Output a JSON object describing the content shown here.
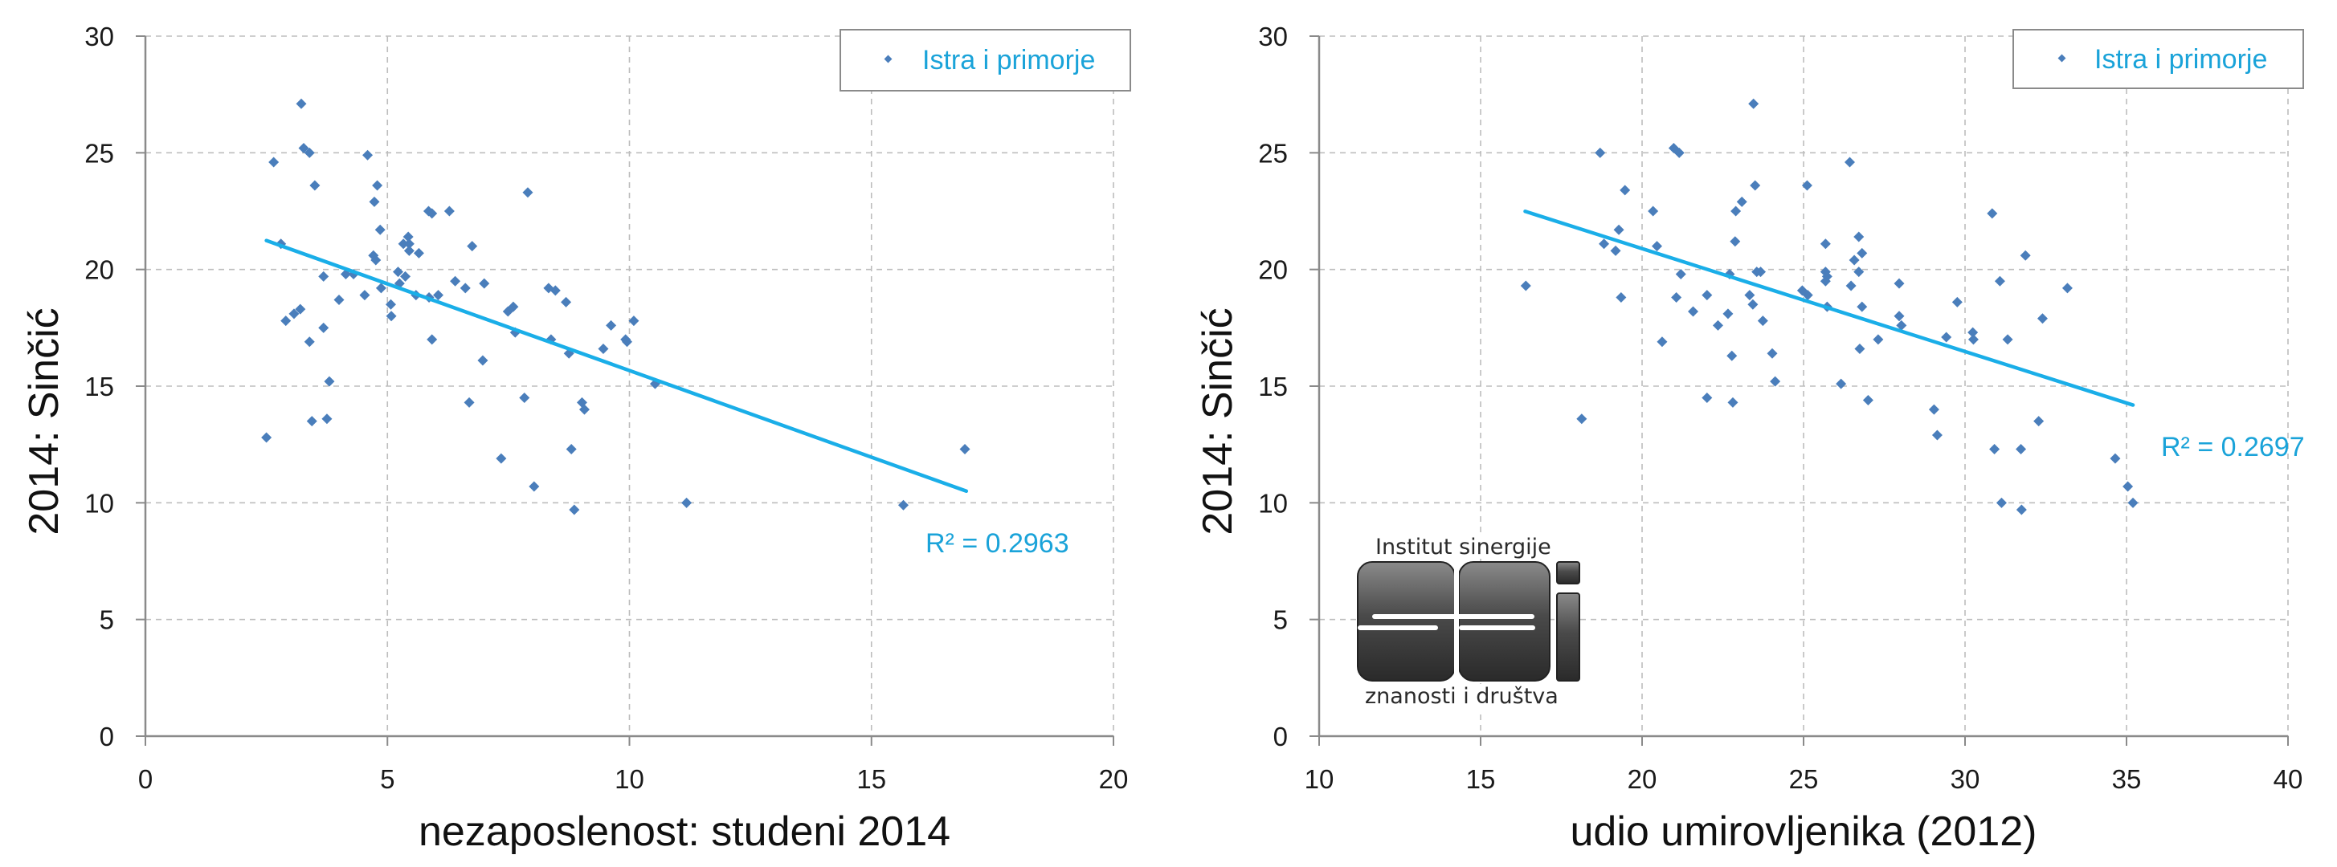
{
  "colors": {
    "marker": "#4a7ebb",
    "trendline": "#1aaee8",
    "legend_text": "#1aa3d9",
    "grid": "#bdbdbd",
    "axis": "#8a8a8a"
  },
  "logo": {
    "top_text": "Institut sinergije",
    "bottom_text": "znanosti i društva"
  },
  "chart_data": [
    {
      "type": "scatter",
      "title": "",
      "xlabel": "nezaposlenost: studeni 2014",
      "ylabel": "2014: Sinčić",
      "xlim": [
        0,
        20
      ],
      "ylim": [
        0,
        30
      ],
      "xticks": [
        "0",
        "5",
        "10",
        "15",
        "20"
      ],
      "yticks": [
        "0",
        "5",
        "10",
        "15",
        "20",
        "25",
        "30"
      ],
      "grid": true,
      "legend": {
        "position": "top-right",
        "entries": [
          "Istra i primorje"
        ]
      },
      "trendline": {
        "type": "linear",
        "x": [
          2.5,
          16.96
        ],
        "y": [
          21.24,
          10.5
        ],
        "label": "R² = 0.2963"
      },
      "series": [
        {
          "name": "Istra i primorje",
          "points": [
            [
              2.5,
              12.8
            ],
            [
              2.65,
              24.6
            ],
            [
              2.8,
              21.1
            ],
            [
              2.9,
              17.8
            ],
            [
              3.07,
              18.1
            ],
            [
              3.2,
              18.3
            ],
            [
              3.22,
              27.1
            ],
            [
              3.27,
              25.2
            ],
            [
              3.39,
              25.0
            ],
            [
              3.39,
              16.9
            ],
            [
              3.44,
              13.5
            ],
            [
              3.5,
              23.6
            ],
            [
              3.68,
              19.7
            ],
            [
              3.68,
              17.5
            ],
            [
              3.75,
              13.6
            ],
            [
              3.8,
              15.2
            ],
            [
              4.0,
              18.7
            ],
            [
              4.14,
              19.8
            ],
            [
              4.3,
              19.8
            ],
            [
              4.53,
              18.9
            ],
            [
              4.59,
              24.9
            ],
            [
              4.71,
              20.6
            ],
            [
              4.73,
              22.9
            ],
            [
              4.76,
              20.4
            ],
            [
              4.79,
              23.6
            ],
            [
              4.85,
              21.7
            ],
            [
              4.87,
              19.2
            ],
            [
              5.07,
              18.5
            ],
            [
              5.08,
              18.0
            ],
            [
              5.22,
              19.9
            ],
            [
              5.25,
              19.4
            ],
            [
              5.33,
              21.1
            ],
            [
              5.37,
              19.7
            ],
            [
              5.43,
              21.4
            ],
            [
              5.45,
              21.1
            ],
            [
              5.45,
              20.8
            ],
            [
              5.59,
              18.9
            ],
            [
              5.65,
              20.7
            ],
            [
              5.85,
              22.5
            ],
            [
              5.86,
              18.8
            ],
            [
              5.92,
              22.4
            ],
            [
              5.92,
              17.0
            ],
            [
              6.05,
              18.9
            ],
            [
              6.28,
              22.5
            ],
            [
              6.4,
              19.5
            ],
            [
              6.61,
              19.2
            ],
            [
              6.69,
              14.3
            ],
            [
              6.75,
              21.0
            ],
            [
              6.97,
              16.1
            ],
            [
              7.0,
              19.4
            ],
            [
              7.35,
              11.9
            ],
            [
              7.49,
              18.2
            ],
            [
              7.6,
              18.4
            ],
            [
              7.64,
              17.3
            ],
            [
              7.83,
              14.5
            ],
            [
              7.9,
              23.3
            ],
            [
              8.03,
              10.7
            ],
            [
              8.33,
              19.2
            ],
            [
              8.38,
              17.0
            ],
            [
              8.47,
              19.1
            ],
            [
              8.69,
              18.6
            ],
            [
              8.75,
              16.4
            ],
            [
              8.8,
              12.3
            ],
            [
              8.86,
              9.7
            ],
            [
              9.02,
              14.3
            ],
            [
              9.07,
              14.0
            ],
            [
              9.46,
              16.6
            ],
            [
              9.62,
              17.6
            ],
            [
              9.92,
              17.0
            ],
            [
              9.95,
              16.9
            ],
            [
              10.09,
              17.8
            ],
            [
              10.53,
              15.1
            ],
            [
              11.18,
              10.0
            ],
            [
              15.66,
              9.9
            ],
            [
              16.93,
              12.3
            ]
          ]
        }
      ]
    },
    {
      "type": "scatter",
      "title": "",
      "xlabel": "udio umirovljenika (2012)",
      "ylabel": "2014: Sinčić",
      "xlim": [
        10,
        40
      ],
      "ylim": [
        0,
        30
      ],
      "xticks": [
        "10",
        "15",
        "20",
        "25",
        "30",
        "35",
        "40"
      ],
      "yticks": [
        "0",
        "5",
        "10",
        "15",
        "20",
        "25",
        "30"
      ],
      "grid": true,
      "legend": {
        "position": "top-right",
        "entries": [
          "Istra i primorje"
        ]
      },
      "trendline": {
        "type": "linear",
        "x": [
          16.38,
          35.2
        ],
        "y": [
          22.49,
          14.19
        ],
        "label": "R² = 0.2697"
      },
      "series": [
        {
          "name": "Istra i primorje",
          "points": [
            [
              16.4,
              19.3
            ],
            [
              18.13,
              13.6
            ],
            [
              18.7,
              25.0
            ],
            [
              18.82,
              21.1
            ],
            [
              19.18,
              20.8
            ],
            [
              19.28,
              21.7
            ],
            [
              19.35,
              18.8
            ],
            [
              19.47,
              23.4
            ],
            [
              20.34,
              22.5
            ],
            [
              20.46,
              21.0
            ],
            [
              20.62,
              16.9
            ],
            [
              20.98,
              25.2
            ],
            [
              21.06,
              18.8
            ],
            [
              21.15,
              25.0
            ],
            [
              21.2,
              19.8
            ],
            [
              21.58,
              18.2
            ],
            [
              22.01,
              18.9
            ],
            [
              22.01,
              14.5
            ],
            [
              22.35,
              17.6
            ],
            [
              22.66,
              18.1
            ],
            [
              22.71,
              19.8
            ],
            [
              22.78,
              16.3
            ],
            [
              22.81,
              14.3
            ],
            [
              22.88,
              21.2
            ],
            [
              22.9,
              22.5
            ],
            [
              23.09,
              22.9
            ],
            [
              23.33,
              18.9
            ],
            [
              23.43,
              18.5
            ],
            [
              23.45,
              27.1
            ],
            [
              23.5,
              23.6
            ],
            [
              23.55,
              19.9
            ],
            [
              23.67,
              19.9
            ],
            [
              23.74,
              17.8
            ],
            [
              24.03,
              16.4
            ],
            [
              24.12,
              15.2
            ],
            [
              24.96,
              19.1
            ],
            [
              25.11,
              23.6
            ],
            [
              25.13,
              18.9
            ],
            [
              25.68,
              21.1
            ],
            [
              25.68,
              19.9
            ],
            [
              25.68,
              19.5
            ],
            [
              25.73,
              19.7
            ],
            [
              25.73,
              18.4
            ],
            [
              26.16,
              15.1
            ],
            [
              26.43,
              24.6
            ],
            [
              26.47,
              19.3
            ],
            [
              26.57,
              20.4
            ],
            [
              26.71,
              21.4
            ],
            [
              26.71,
              19.9
            ],
            [
              26.74,
              16.6
            ],
            [
              26.81,
              20.7
            ],
            [
              26.81,
              18.4
            ],
            [
              27.0,
              14.4
            ],
            [
              27.31,
              17.0
            ],
            [
              27.96,
              19.4
            ],
            [
              27.96,
              18.0
            ],
            [
              28.03,
              17.6
            ],
            [
              29.04,
              14.0
            ],
            [
              29.14,
              12.9
            ],
            [
              29.42,
              17.1
            ],
            [
              29.76,
              18.6
            ],
            [
              30.24,
              17.3
            ],
            [
              30.26,
              17.0
            ],
            [
              30.84,
              22.4
            ],
            [
              30.91,
              12.3
            ],
            [
              31.08,
              19.5
            ],
            [
              31.13,
              10.0
            ],
            [
              31.32,
              17.0
            ],
            [
              31.73,
              12.3
            ],
            [
              31.75,
              9.7
            ],
            [
              31.87,
              20.6
            ],
            [
              32.28,
              13.5
            ],
            [
              32.4,
              17.9
            ],
            [
              33.17,
              19.2
            ],
            [
              34.65,
              11.9
            ],
            [
              35.04,
              10.7
            ],
            [
              35.2,
              10.0
            ]
          ]
        }
      ]
    }
  ]
}
